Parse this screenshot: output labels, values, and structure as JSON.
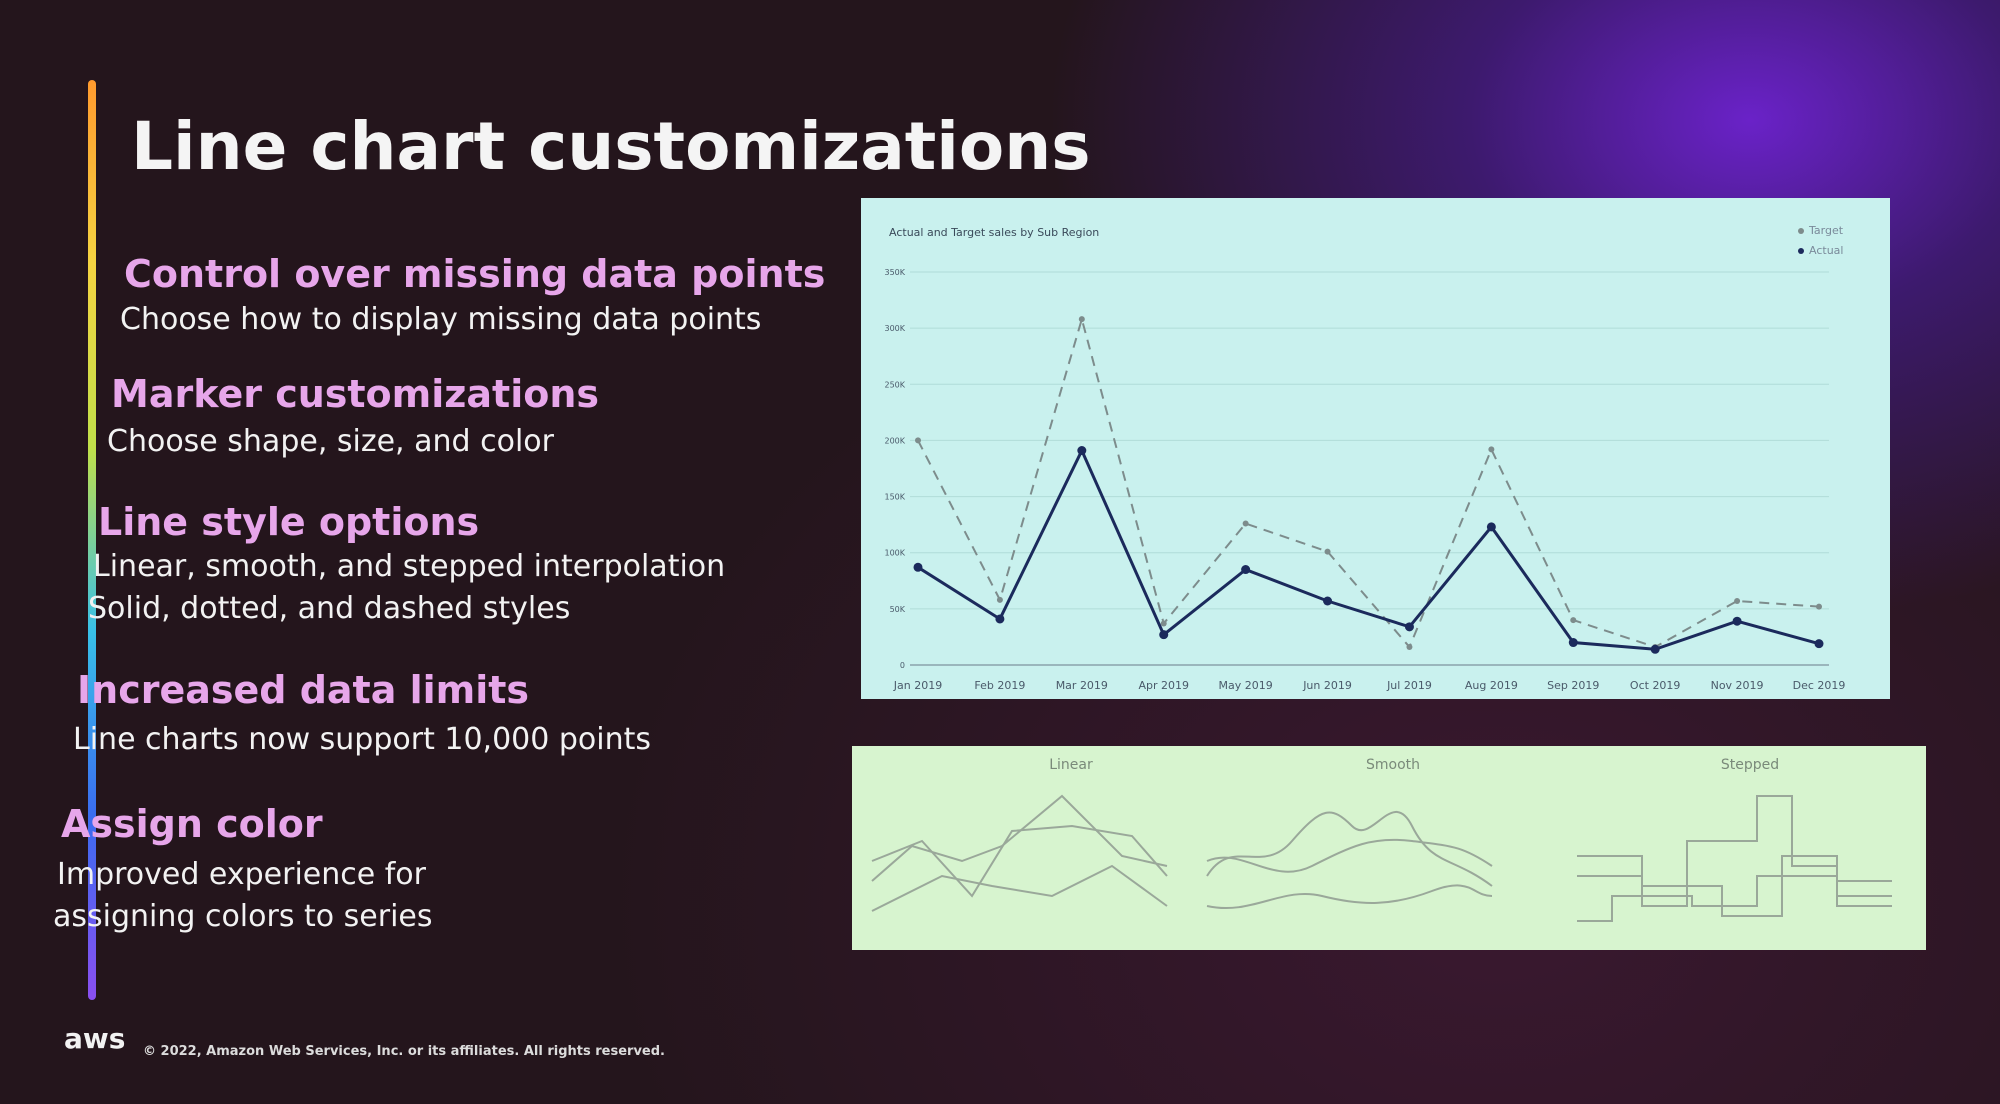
{
  "header": {
    "title": "Line chart customizations"
  },
  "features": [
    {
      "heading": "Control over missing data points",
      "lines": [
        "Choose how to display missing data points"
      ]
    },
    {
      "heading": "Marker customizations",
      "lines": [
        "Choose shape, size, and color"
      ]
    },
    {
      "heading": "Line style options",
      "lines": [
        "Linear, smooth, and stepped interpolation",
        "Solid, dotted, and dashed styles"
      ]
    },
    {
      "heading": "Increased data limits",
      "lines": [
        "Line charts now support 10,000 points"
      ]
    },
    {
      "heading": "Assign color",
      "lines": [
        "Improved experience for",
        "assigning colors to series"
      ]
    }
  ],
  "chart_data": {
    "type": "line",
    "title": "Actual and Target sales by Sub Region",
    "categories": [
      "Jan 2019",
      "Feb 2019",
      "Mar 2019",
      "Apr 2019",
      "May 2019",
      "Jun 2019",
      "Jul 2019",
      "Aug 2019",
      "Sep 2019",
      "Oct 2019",
      "Nov 2019",
      "Dec 2019"
    ],
    "series": [
      {
        "name": "Target",
        "color": "#7d8c8c",
        "line_style": "dashed",
        "values": [
          200000,
          58000,
          308000,
          37000,
          126000,
          101000,
          16000,
          192000,
          40000,
          16000,
          57000,
          52000
        ]
      },
      {
        "name": "Actual",
        "color": "#1b2a5c",
        "line_style": "solid",
        "values": [
          87000,
          41000,
          191000,
          27000,
          85000,
          57000,
          34000,
          123000,
          20000,
          14000,
          39000,
          19000
        ]
      }
    ],
    "ylim": [
      0,
      350000
    ],
    "yticks": [
      0,
      {
        "value": 50000,
        "label": "50K"
      },
      {
        "value": 100000,
        "label": "100K"
      },
      {
        "value": 150000,
        "label": "150K"
      },
      {
        "value": 200000,
        "label": "200K"
      },
      {
        "value": 250000,
        "label": "250K"
      },
      {
        "value": 300000,
        "label": "300K"
      },
      {
        "value": 350000,
        "label": "350K"
      }
    ],
    "grid": true,
    "legend": "top-right"
  },
  "styles": {
    "panels": [
      "Linear",
      "Smooth",
      "Stepped"
    ]
  },
  "footer": {
    "logo": "aws",
    "copyright": "© 2022, Amazon Web Services, Inc. or its affiliates. All rights reserved."
  }
}
